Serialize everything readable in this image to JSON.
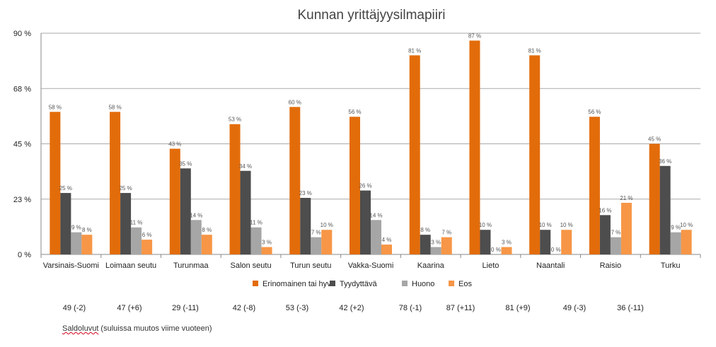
{
  "chart_data": {
    "type": "bar",
    "title": "Kunnan yrittäjyysilmapiiri",
    "ylim": [
      0,
      90
    ],
    "yticks": [
      "0 %",
      "23 %",
      "45 %",
      "68 %",
      "90 %"
    ],
    "ytick_values": [
      0,
      22.5,
      45,
      67.5,
      90
    ],
    "grid": true,
    "legend_position": "bottom",
    "categories": [
      "Varsinais-Suomi",
      "Loimaan seutu",
      "Turunmaa",
      "Salon seutu",
      "Turun seutu",
      "Vakka-Suomi",
      "Kaarina",
      "Lieto",
      "Naantali",
      "Raisio",
      "Turku"
    ],
    "series": [
      {
        "name": "Erinomainen tai hyvä",
        "color": "#e36c0a",
        "values": [
          58,
          58,
          43,
          53,
          60,
          56,
          81,
          87,
          81,
          56,
          45
        ],
        "labels": [
          "58 %",
          "58 %",
          "43 %",
          "53 %",
          "60 %",
          "56 %",
          "81 %",
          "87 %",
          "81 %",
          "56 %",
          "45 %"
        ]
      },
      {
        "name": "Tyydyttävä",
        "color": "#4d4d4d",
        "values": [
          25,
          25,
          35,
          34,
          23,
          26,
          8,
          10,
          10,
          16,
          36
        ],
        "labels": [
          "25 %",
          "25 %",
          "35 %",
          "34 %",
          "23 %",
          "26 %",
          "8 %",
          "10 %",
          "10 %",
          "16 %",
          "36 %"
        ]
      },
      {
        "name": "Huono",
        "color": "#a6a6a6",
        "values": [
          9,
          11,
          14,
          11,
          7,
          14,
          3,
          0,
          0,
          7,
          9
        ],
        "labels": [
          "9 %",
          "11 %",
          "14 %",
          "11 %",
          "7 %",
          "14 %",
          "3 %",
          "0 %",
          "0 %",
          "7 %",
          "9 %"
        ]
      },
      {
        "name": "Eos",
        "color": "#f79646",
        "values": [
          8,
          6,
          8,
          3,
          10,
          4,
          7,
          3,
          10,
          21,
          10
        ],
        "labels": [
          "8 %",
          "6 %",
          "8 %",
          "3 %",
          "10 %",
          "4 %",
          "7 %",
          "3 %",
          "10 %",
          "21 %",
          "10 %"
        ]
      }
    ]
  },
  "saldo": {
    "values": [
      "49 (-2)",
      "47 (+6)",
      "29 (-11)",
      "42 (-8)",
      "53 (-3)",
      "42 (+2)",
      "78 (-1)",
      "87 (+11)",
      "81 (+9)",
      "49 (-3)",
      "36 (-11)"
    ],
    "note_word": "Saldoluvut",
    "note_rest": " (suluissa muutos viime vuoteen)"
  }
}
